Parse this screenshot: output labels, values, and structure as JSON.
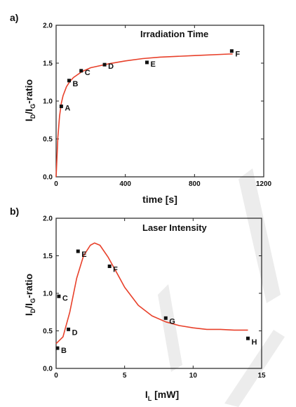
{
  "chart_data": [
    {
      "panel": "a)",
      "type": "scatter",
      "title": "Irradiation Time",
      "xlabel": "time [s]",
      "ylabel": "I_D/I_G-ratio",
      "xlim": [
        0,
        1200
      ],
      "ylim": [
        0,
        2.0
      ],
      "xticks": [
        0,
        400,
        800,
        1200
      ],
      "yticks": [
        0.0,
        0.5,
        1.0,
        1.5,
        2.0
      ],
      "xtick_labels": [
        "0",
        "400",
        "800",
        "1200"
      ],
      "ytick_labels": [
        "0.0",
        "0.5",
        "1.0",
        "1.5",
        "2.0"
      ],
      "points": [
        {
          "label": "A",
          "x": 30,
          "y": 0.93
        },
        {
          "label": "B",
          "x": 75,
          "y": 1.27
        },
        {
          "label": "C",
          "x": 145,
          "y": 1.4
        },
        {
          "label": "D",
          "x": 280,
          "y": 1.48
        },
        {
          "label": "E",
          "x": 525,
          "y": 1.51
        },
        {
          "label": "F",
          "x": 1015,
          "y": 1.66
        }
      ],
      "fit_color": "#e8402a",
      "fit": {
        "x": [
          0,
          10,
          20,
          30,
          40,
          60,
          80,
          100,
          150,
          200,
          300,
          400,
          500,
          600,
          800,
          1000,
          1020
        ],
        "y": [
          0,
          0.52,
          0.8,
          0.97,
          1.07,
          1.19,
          1.26,
          1.31,
          1.39,
          1.44,
          1.49,
          1.53,
          1.56,
          1.58,
          1.6,
          1.62,
          1.62
        ]
      },
      "grid": false,
      "legend": "none"
    },
    {
      "panel": "b)",
      "type": "scatter",
      "title": "Laser Intensity",
      "xlabel": "I_L [mW]",
      "ylabel": "I_D/I_G-ratio",
      "xlim": [
        0,
        15
      ],
      "ylim": [
        0,
        2.0
      ],
      "xticks": [
        0,
        5,
        10,
        15
      ],
      "yticks": [
        0.0,
        0.5,
        1.0,
        1.5,
        2.0
      ],
      "xtick_labels": [
        "0",
        "5",
        "10",
        "15"
      ],
      "ytick_labels": [
        "0.0",
        "0.5",
        "1.0",
        "1.5",
        "2.0"
      ],
      "points": [
        {
          "label": "B",
          "x": 0.1,
          "y": 0.27
        },
        {
          "label": "C",
          "x": 0.2,
          "y": 0.96
        },
        {
          "label": "D",
          "x": 0.9,
          "y": 0.52
        },
        {
          "label": "E",
          "x": 1.6,
          "y": 1.56
        },
        {
          "label": "F",
          "x": 3.9,
          "y": 1.36
        },
        {
          "label": "G",
          "x": 8.0,
          "y": 0.67
        },
        {
          "label": "H",
          "x": 14.0,
          "y": 0.4
        }
      ],
      "fit_color": "#e8402a",
      "fit": {
        "x": [
          0,
          0.5,
          1.0,
          1.5,
          2.0,
          2.5,
          2.8,
          3.2,
          3.8,
          4.5,
          5,
          6,
          7,
          8,
          9,
          10,
          11,
          12,
          13,
          14
        ],
        "y": [
          0.33,
          0.42,
          0.75,
          1.2,
          1.5,
          1.64,
          1.67,
          1.64,
          1.48,
          1.25,
          1.08,
          0.84,
          0.7,
          0.62,
          0.57,
          0.54,
          0.52,
          0.52,
          0.51,
          0.51
        ]
      },
      "grid": false,
      "legend": "none"
    }
  ]
}
